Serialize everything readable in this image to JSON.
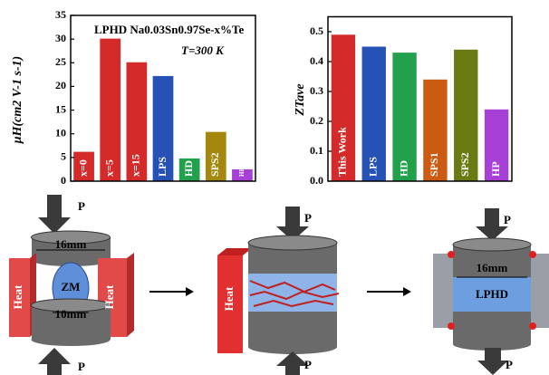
{
  "chart_data": [
    {
      "type": "bar",
      "title": "LPHD Na0.03Sn0.97Se-x%Te",
      "annotation": "T=300 K",
      "y_label": "μH(cm2 V-1 s-1)",
      "categories": [
        "x=0",
        "x=5",
        "x=15",
        "LPS",
        "HD",
        "SPS2",
        "HP"
      ],
      "values": [
        6.2,
        30.1,
        25.1,
        22.2,
        4.8,
        10.4,
        2.5
      ],
      "colors": [
        "#d42a2a",
        "#d42a2a",
        "#d42a2a",
        "#2552b4",
        "#22a04c",
        "#a4880e",
        "#a640d6"
      ],
      "ylim": [
        0,
        35
      ],
      "yticks": [
        0,
        5,
        10,
        15,
        20,
        25,
        30,
        35
      ]
    },
    {
      "type": "bar",
      "y_label": "ZTave",
      "categories": [
        "This Work",
        "LPS",
        "HD",
        "SPS1",
        "SPS2",
        "HP"
      ],
      "values": [
        0.49,
        0.45,
        0.43,
        0.34,
        0.44,
        0.24
      ],
      "colors": [
        "#d42a2a",
        "#2552b4",
        "#22a04c",
        "#cc5a10",
        "#6a7a12",
        "#a640d6"
      ],
      "ylim": [
        0,
        0.55
      ],
      "yticks": [
        {
          "value": 0,
          "label": "0.0"
        },
        0.1,
        0.2,
        0.3,
        0.4,
        0.5
      ]
    }
  ],
  "diagram": {
    "panels": [
      {
        "top_force": "P",
        "top_width": "16mm",
        "heater_left": "Heat",
        "heater_right": "Heat",
        "sample": "ZM",
        "bottom_width": "10mm",
        "bottom_force": "P"
      },
      {
        "top_force": "P",
        "heater_left": "Heat",
        "bottom_force": "P"
      },
      {
        "top_force": "P",
        "width": "16mm",
        "sample": "LPHD",
        "bottom_force": "P"
      }
    ]
  }
}
